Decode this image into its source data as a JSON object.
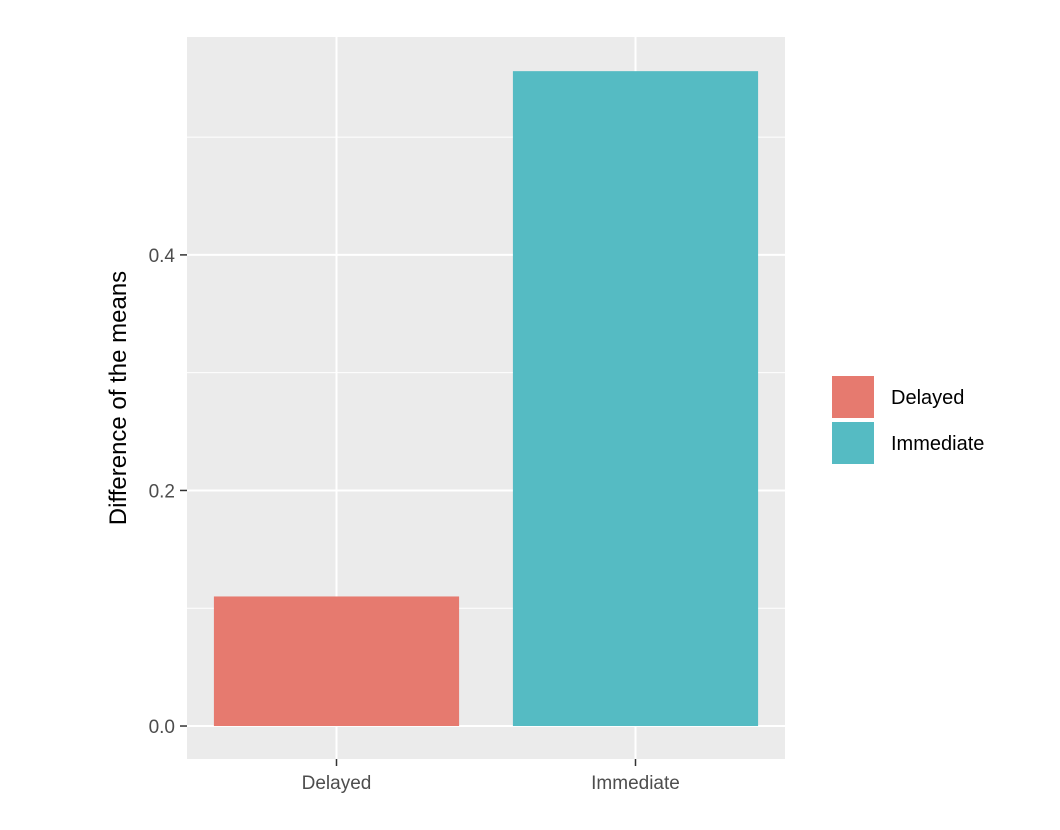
{
  "chart_data": {
    "type": "bar",
    "categories": [
      "Delayed",
      "Immediate"
    ],
    "values": [
      0.11,
      0.556
    ],
    "colors": [
      "#E67A6F",
      "#55BBC3"
    ],
    "title": "",
    "xlabel": "",
    "ylabel": "Difference of the means",
    "ylim": [
      -0.028,
      0.585
    ],
    "yticks": [
      0.0,
      0.2,
      0.4
    ],
    "ytick_labels": [
      "0.0",
      "0.2",
      "0.4"
    ],
    "grid": true,
    "panel_background": "#EBEBEB",
    "legend": {
      "position": "right",
      "entries": [
        {
          "label": "Delayed",
          "color": "#E67A6F"
        },
        {
          "label": "Immediate",
          "color": "#55BBC3"
        }
      ]
    }
  }
}
